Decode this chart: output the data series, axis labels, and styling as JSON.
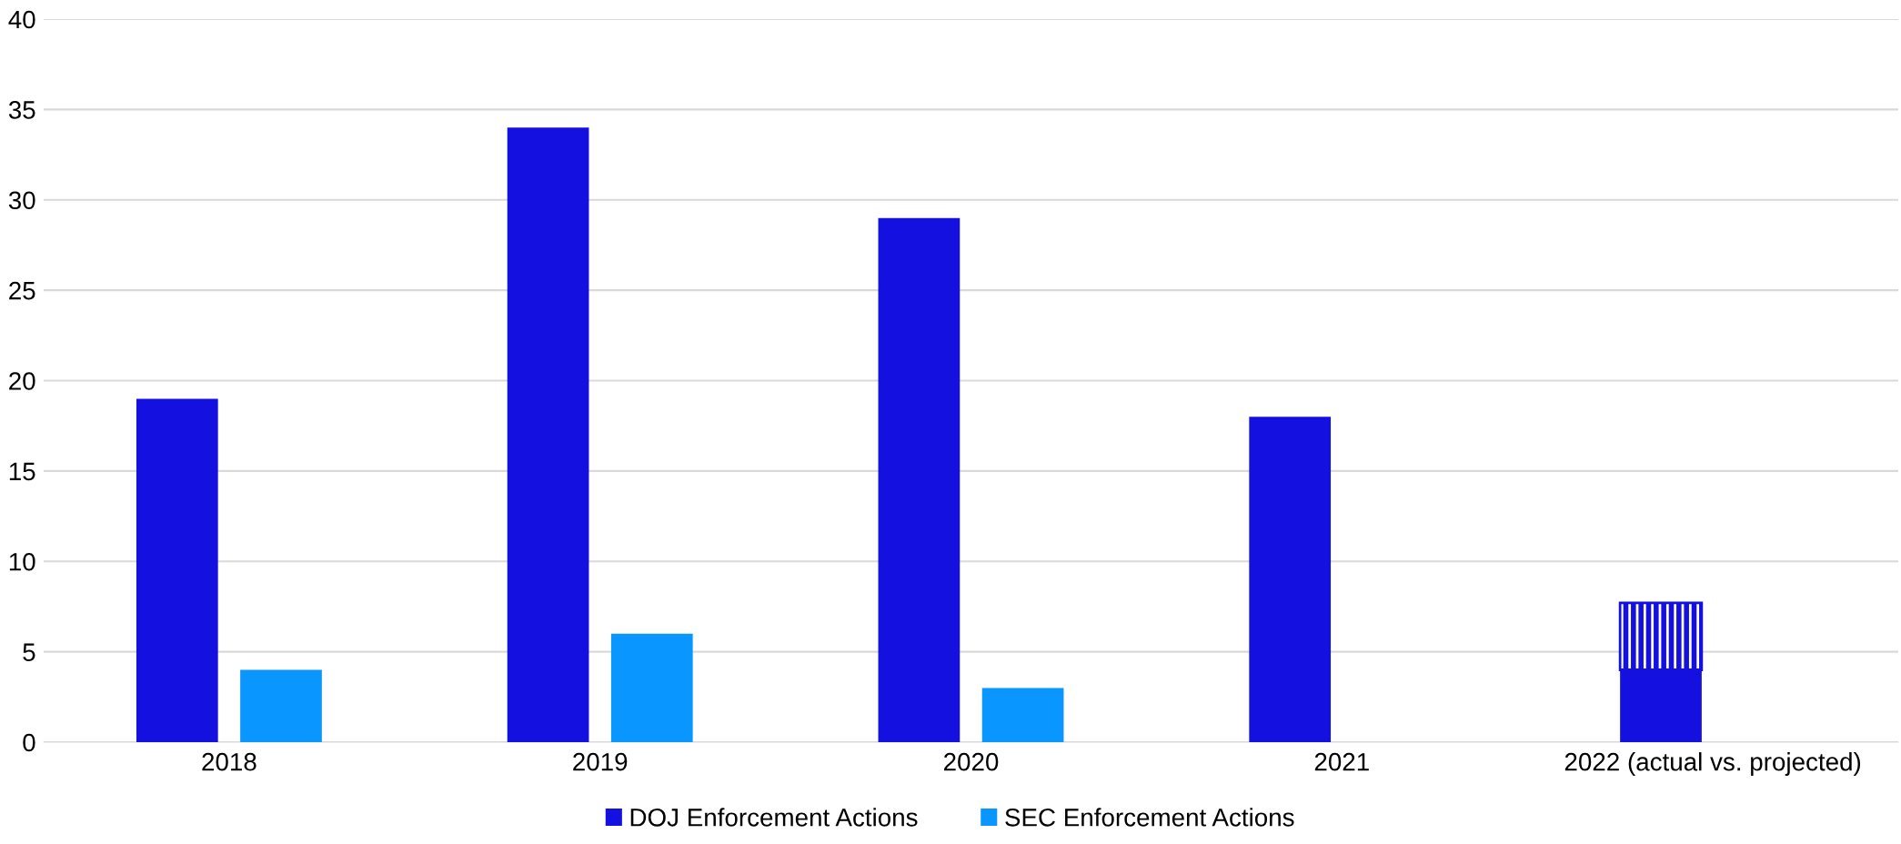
{
  "chart_data": {
    "type": "bar",
    "categories": [
      "2018",
      "2019",
      "2020",
      "2021",
      "2022 (actual vs. projected)"
    ],
    "series": [
      {
        "name": "DOJ Enforcement Actions",
        "color": "#1410e0",
        "values": [
          19,
          34,
          29,
          18,
          4
        ]
      },
      {
        "name": "SEC Enforcement Actions",
        "color": "#0a96ff",
        "values": [
          4,
          6,
          3,
          null,
          null
        ]
      },
      {
        "color": "#1410e0",
        "values": [
          null,
          null,
          null,
          null,
          3.7
        ],
        "base": [
          null,
          null,
          null,
          null,
          4
        ]
      }
    ],
    "ylim": [
      0,
      40
    ],
    "yticks": [
      0,
      5,
      10,
      15,
      20,
      25,
      30,
      35,
      40
    ],
    "grid": "y",
    "legend": "bottom"
  }
}
